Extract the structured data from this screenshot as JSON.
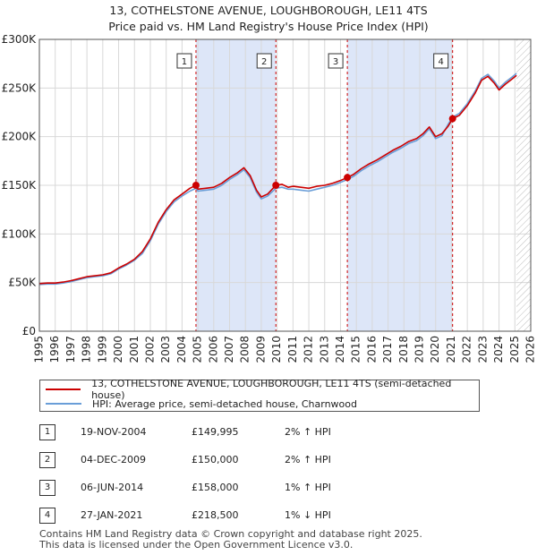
{
  "title_line1": "13, COTHELSTONE AVENUE, LOUGHBOROUGH, LE11 4TS",
  "title_line2": "Price paid vs. HM Land Registry's House Price Index (HPI)",
  "colors": {
    "price_line": "#cc0000",
    "hpi_line": "#6a9ed8",
    "shade": "#dde6f8",
    "grid": "#d8d8d8",
    "dashed": "#cc0000"
  },
  "chart_data": {
    "type": "line",
    "title": "13, COTHELSTONE AVENUE, LOUGHBOROUGH, LE11 4TS - Price paid vs. HM Land Registry's House Price Index (HPI)",
    "xlabel": "",
    "ylabel": "",
    "xlim": [
      1995,
      2026
    ],
    "ylim": [
      0,
      300000
    ],
    "y_ticks": [
      0,
      50000,
      100000,
      150000,
      200000,
      250000,
      300000
    ],
    "y_tick_labels": [
      "£0",
      "£50K",
      "£100K",
      "£150K",
      "£200K",
      "£250K",
      "£300K"
    ],
    "x_ticks": [
      1995,
      1996,
      1997,
      1998,
      1999,
      2000,
      2001,
      2002,
      2003,
      2004,
      2005,
      2006,
      2007,
      2008,
      2009,
      2010,
      2011,
      2012,
      2013,
      2014,
      2015,
      2016,
      2017,
      2018,
      2019,
      2020,
      2021,
      2022,
      2023,
      2024,
      2025,
      2026
    ],
    "series": [
      {
        "name": "13, COTHELSTONE AVENUE, LOUGHBOROUGH, LE11 4TS (semi-detached house)",
        "color": "#cc0000",
        "x": [
          1995.0,
          1995.5,
          1996.0,
          1996.5,
          1997.0,
          1997.5,
          1998.0,
          1998.5,
          1999.0,
          1999.5,
          2000.0,
          2000.5,
          2001.0,
          2001.5,
          2002.0,
          2002.5,
          2003.0,
          2003.5,
          2004.0,
          2004.5,
          2004.88,
          2005.0,
          2005.5,
          2006.0,
          2006.5,
          2007.0,
          2007.5,
          2007.9,
          2008.3,
          2008.7,
          2009.0,
          2009.4,
          2009.92,
          2010.3,
          2010.7,
          2011.0,
          2011.5,
          2012.0,
          2012.5,
          2013.0,
          2013.5,
          2014.0,
          2014.43,
          2014.8,
          2015.3,
          2015.8,
          2016.3,
          2016.8,
          2017.3,
          2017.8,
          2018.3,
          2018.8,
          2019.2,
          2019.6,
          2020.0,
          2020.4,
          2020.8,
          2021.07,
          2021.5,
          2022.0,
          2022.5,
          2022.9,
          2023.3,
          2023.7,
          2024.0,
          2024.4,
          2024.8,
          2025.1
        ],
        "values": [
          49000,
          49500,
          49500,
          50500,
          52000,
          54000,
          56000,
          57000,
          58000,
          60000,
          65000,
          69000,
          74000,
          82000,
          95000,
          112000,
          125000,
          135000,
          141000,
          147000,
          149995,
          146000,
          147000,
          148000,
          152000,
          158000,
          163000,
          168000,
          160000,
          145000,
          138000,
          141000,
          150000,
          151000,
          148000,
          149000,
          148000,
          147000,
          149000,
          150000,
          152000,
          155000,
          158000,
          161000,
          167000,
          172000,
          176000,
          181000,
          186000,
          190000,
          195000,
          198000,
          203000,
          210000,
          200000,
          203000,
          211000,
          218500,
          222000,
          232000,
          245000,
          258000,
          262000,
          255000,
          248000,
          254000,
          259000,
          263000
        ]
      },
      {
        "name": "HPI: Average price, semi-detached house, Charnwood",
        "color": "#6a9ed8",
        "x": [
          1995.0,
          1995.5,
          1996.0,
          1996.5,
          1997.0,
          1997.5,
          1998.0,
          1998.5,
          1999.0,
          1999.5,
          2000.0,
          2000.5,
          2001.0,
          2001.5,
          2002.0,
          2002.5,
          2003.0,
          2003.5,
          2004.0,
          2004.5,
          2004.88,
          2005.0,
          2005.5,
          2006.0,
          2006.5,
          2007.0,
          2007.5,
          2007.9,
          2008.3,
          2008.7,
          2009.0,
          2009.4,
          2009.92,
          2010.3,
          2010.7,
          2011.0,
          2011.5,
          2012.0,
          2012.5,
          2013.0,
          2013.5,
          2014.0,
          2014.43,
          2014.8,
          2015.3,
          2015.8,
          2016.3,
          2016.8,
          2017.3,
          2017.8,
          2018.3,
          2018.8,
          2019.2,
          2019.6,
          2020.0,
          2020.4,
          2020.8,
          2021.07,
          2021.5,
          2022.0,
          2022.5,
          2022.9,
          2023.3,
          2023.7,
          2024.0,
          2024.4,
          2024.8,
          2025.1
        ],
        "values": [
          48000,
          48500,
          48500,
          49500,
          51000,
          53000,
          55000,
          56000,
          57000,
          59000,
          64000,
          68000,
          73000,
          80000,
          93000,
          110000,
          123000,
          133000,
          139000,
          144000,
          147000,
          144000,
          145000,
          146000,
          150000,
          156000,
          161000,
          166000,
          158000,
          143000,
          136000,
          139000,
          147000,
          148000,
          146000,
          146000,
          145000,
          144000,
          146000,
          148000,
          150000,
          153000,
          156000,
          159000,
          165000,
          170000,
          174000,
          179000,
          184000,
          188000,
          193000,
          196000,
          201000,
          208000,
          198000,
          201000,
          213000,
          220000,
          224000,
          234000,
          247000,
          260000,
          264000,
          257000,
          250000,
          256000,
          261000,
          265000
        ]
      }
    ],
    "sales": [
      {
        "label": "1",
        "x": 2004.88,
        "price": 149995
      },
      {
        "label": "2",
        "x": 2009.92,
        "price": 150000
      },
      {
        "label": "3",
        "x": 2014.43,
        "price": 158000
      },
      {
        "label": "4",
        "x": 2021.07,
        "price": 218500
      }
    ],
    "shaded_ranges": [
      [
        2004.88,
        2009.92
      ],
      [
        2014.43,
        2021.07
      ]
    ],
    "hatched_from": 2025.1
  },
  "legend": {
    "price_label": "13, COTHELSTONE AVENUE, LOUGHBOROUGH, LE11 4TS (semi-detached house)",
    "hpi_label": "HPI: Average price, semi-detached house, Charnwood"
  },
  "table": [
    {
      "num": "1",
      "date": "19-NOV-2004",
      "price": "£149,995",
      "hpi": "2% ↑ HPI"
    },
    {
      "num": "2",
      "date": "04-DEC-2009",
      "price": "£150,000",
      "hpi": "2% ↑ HPI"
    },
    {
      "num": "3",
      "date": "06-JUN-2014",
      "price": "£158,000",
      "hpi": "1% ↑ HPI"
    },
    {
      "num": "4",
      "date": "27-JAN-2021",
      "price": "£218,500",
      "hpi": "1% ↓ HPI"
    }
  ],
  "footer": {
    "line1": "Contains HM Land Registry data © Crown copyright and database right 2025.",
    "line2": "This data is licensed under the Open Government Licence v3.0."
  }
}
